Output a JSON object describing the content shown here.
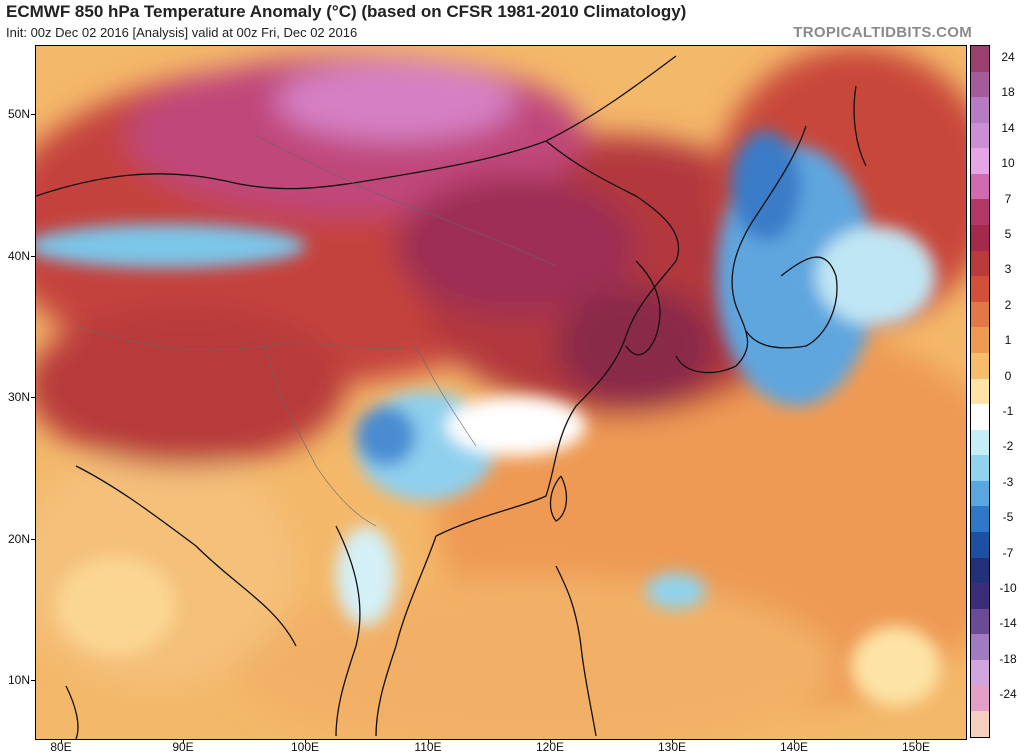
{
  "header": {
    "title": "ECMWF 850 hPa Temperature Anomaly (°C) (based on CFSR 1981-2010 Climatology)",
    "subtitle": "Init: 00z Dec 02 2016   [Analysis]   valid at 00z Fri, Dec 02 2016",
    "watermark": "TROPICALTIDBITS.COM"
  },
  "map": {
    "lat_labels": [
      "50N",
      "40N",
      "30N",
      "20N",
      "10N"
    ],
    "lon_labels": [
      "80E",
      "90E",
      "100E",
      "110E",
      "120E",
      "130E",
      "140E",
      "150E"
    ]
  },
  "colorbar": {
    "labels": [
      "24",
      "18",
      "14",
      "10",
      "7",
      "5",
      "3",
      "2",
      "1",
      "0",
      "-1",
      "-2",
      "-3",
      "-5",
      "-7",
      "-10",
      "-14",
      "-18",
      "-24"
    ],
    "colors": [
      "#9a3f6e",
      "#a55a9a",
      "#b77bc4",
      "#cc8fd6",
      "#e6a5e6",
      "#d06bb0",
      "#b23868",
      "#a32a4a",
      "#b83a3a",
      "#d2503a",
      "#e27845",
      "#ef9a52",
      "#f6bd6c",
      "#fde4a6",
      "#ffffff",
      "#c6eef6",
      "#8fd3ee",
      "#5aa6e0",
      "#3077c9",
      "#1d4fa3",
      "#23317a",
      "#3c2d7a",
      "#6b4a96",
      "#a07bc1",
      "#d1a6dd",
      "#e59fc6",
      "#f5d0c0"
    ]
  }
}
